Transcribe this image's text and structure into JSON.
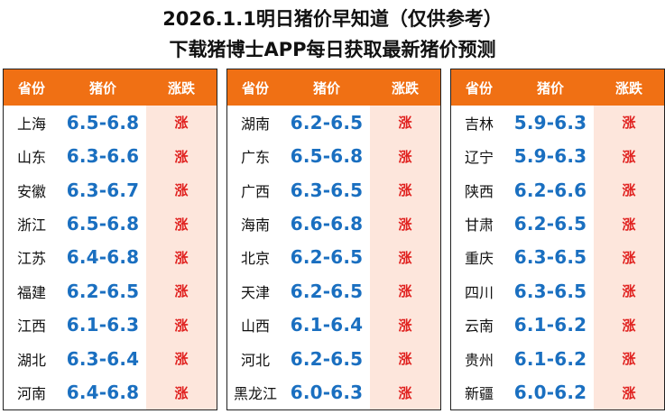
{
  "header": {
    "title": "2026.1.1明日猪价早知道（仅供参考）",
    "subtitle": "下载猪博士APP每日获取最新猪价预测"
  },
  "colors": {
    "header_bg": "#f07014",
    "price_text": "#1a6fc0",
    "trend_text": "#e0201e",
    "trend_col_bg": "#fde6dc"
  },
  "columns": {
    "province": "省份",
    "price": "猪价",
    "trend": "涨跌"
  },
  "panels": [
    {
      "rows": [
        {
          "province": "上海",
          "price": "6.5-6.8",
          "trend": "涨"
        },
        {
          "province": "山东",
          "price": "6.3-6.6",
          "trend": "涨"
        },
        {
          "province": "安徽",
          "price": "6.3-6.7",
          "trend": "涨"
        },
        {
          "province": "浙江",
          "price": "6.5-6.8",
          "trend": "涨"
        },
        {
          "province": "江苏",
          "price": "6.4-6.8",
          "trend": "涨"
        },
        {
          "province": "福建",
          "price": "6.2-6.5",
          "trend": "涨"
        },
        {
          "province": "江西",
          "price": "6.1-6.3",
          "trend": "涨"
        },
        {
          "province": "湖北",
          "price": "6.3-6.4",
          "trend": "涨"
        },
        {
          "province": "河南",
          "price": "6.4-6.8",
          "trend": "涨"
        }
      ]
    },
    {
      "rows": [
        {
          "province": "湖南",
          "price": "6.2-6.5",
          "trend": "涨"
        },
        {
          "province": "广东",
          "price": "6.5-6.8",
          "trend": "涨"
        },
        {
          "province": "广西",
          "price": "6.3-6.5",
          "trend": "涨"
        },
        {
          "province": "海南",
          "price": "6.6-6.8",
          "trend": "涨"
        },
        {
          "province": "北京",
          "price": "6.2-6.5",
          "trend": "涨"
        },
        {
          "province": "天津",
          "price": "6.2-6.5",
          "trend": "涨"
        },
        {
          "province": "山西",
          "price": "6.1-6.4",
          "trend": "涨"
        },
        {
          "province": "河北",
          "price": "6.2-6.5",
          "trend": "涨"
        },
        {
          "province": "黑龙江",
          "price": "6.0-6.3",
          "trend": "涨"
        }
      ]
    },
    {
      "rows": [
        {
          "province": "吉林",
          "price": "5.9-6.3",
          "trend": "涨"
        },
        {
          "province": "辽宁",
          "price": "5.9-6.3",
          "trend": "涨"
        },
        {
          "province": "陕西",
          "price": "6.2-6.6",
          "trend": "涨"
        },
        {
          "province": "甘肃",
          "price": "6.2-6.5",
          "trend": "涨"
        },
        {
          "province": "重庆",
          "price": "6.3-6.5",
          "trend": "涨"
        },
        {
          "province": "四川",
          "price": "6.3-6.5",
          "trend": "涨"
        },
        {
          "province": "云南",
          "price": "6.1-6.2",
          "trend": "涨"
        },
        {
          "province": "贵州",
          "price": "6.1-6.2",
          "trend": "涨"
        },
        {
          "province": "新疆",
          "price": "6.0-6.2",
          "trend": "涨"
        }
      ]
    }
  ]
}
